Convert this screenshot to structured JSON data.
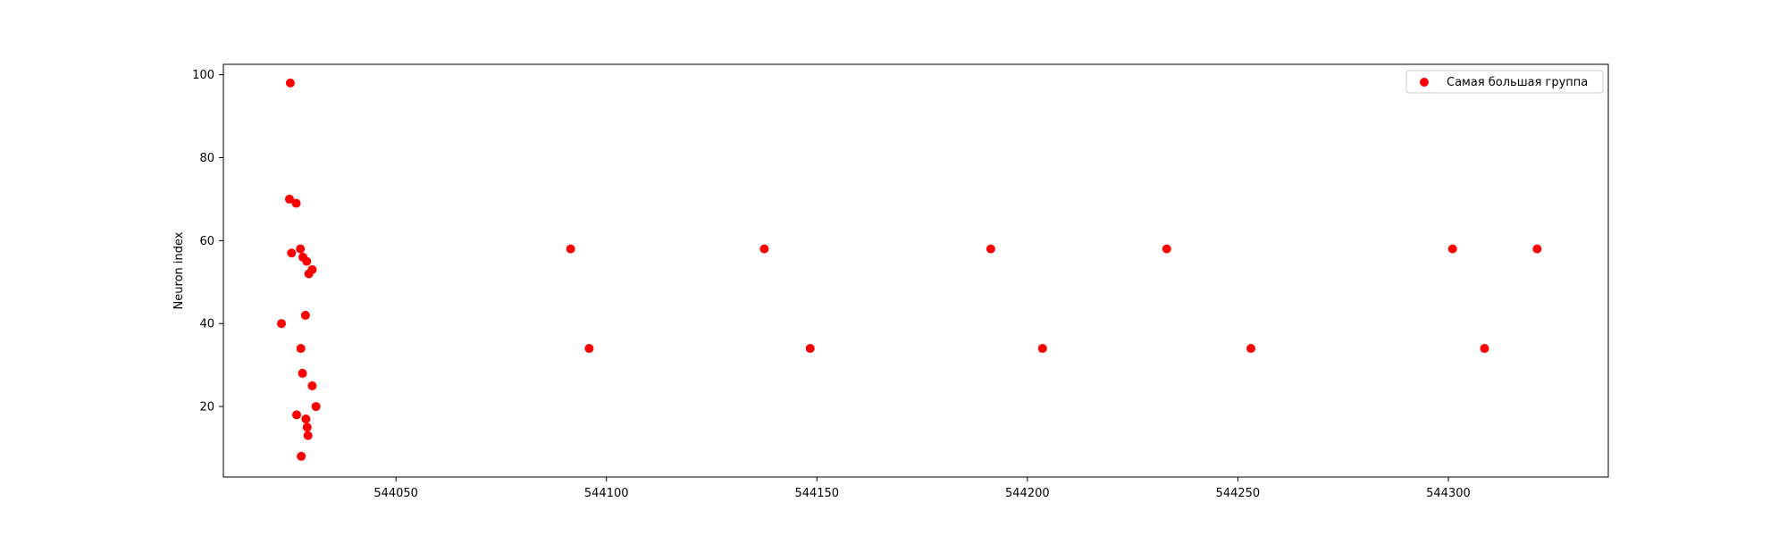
{
  "chart_data": {
    "type": "scatter",
    "title": "",
    "xlabel": "",
    "ylabel": "Neuron index",
    "xlim": [
      544009,
      544338
    ],
    "ylim": [
      3,
      102.5
    ],
    "xticks": [
      544050,
      544100,
      544150,
      544200,
      544250,
      544300
    ],
    "yticks": [
      20,
      40,
      60,
      80,
      100
    ],
    "grid": false,
    "legend_position": "top-right",
    "series": [
      {
        "name": "Самая большая группа",
        "color": "#ff0000",
        "marker": "circle",
        "points": [
          {
            "x": 544022.8,
            "y": 40
          },
          {
            "x": 544024.7,
            "y": 70
          },
          {
            "x": 544024.9,
            "y": 98
          },
          {
            "x": 544025.2,
            "y": 57
          },
          {
            "x": 544026.3,
            "y": 69
          },
          {
            "x": 544026.4,
            "y": 18
          },
          {
            "x": 544027.3,
            "y": 58
          },
          {
            "x": 544027.4,
            "y": 34
          },
          {
            "x": 544027.5,
            "y": 8
          },
          {
            "x": 544027.8,
            "y": 28
          },
          {
            "x": 544027.9,
            "y": 56
          },
          {
            "x": 544028.5,
            "y": 42
          },
          {
            "x": 544028.6,
            "y": 17
          },
          {
            "x": 544028.8,
            "y": 55
          },
          {
            "x": 544028.9,
            "y": 15
          },
          {
            "x": 544029.1,
            "y": 13
          },
          {
            "x": 544029.3,
            "y": 52
          },
          {
            "x": 544030.1,
            "y": 53
          },
          {
            "x": 544030.1,
            "y": 25
          },
          {
            "x": 544031.0,
            "y": 20
          },
          {
            "x": 544091.5,
            "y": 58
          },
          {
            "x": 544095.9,
            "y": 34
          },
          {
            "x": 544137.5,
            "y": 58
          },
          {
            "x": 544148.4,
            "y": 34
          },
          {
            "x": 544191.3,
            "y": 58
          },
          {
            "x": 544203.6,
            "y": 34
          },
          {
            "x": 544233.1,
            "y": 58
          },
          {
            "x": 544253.1,
            "y": 34
          },
          {
            "x": 544301.0,
            "y": 58
          },
          {
            "x": 544308.6,
            "y": 34
          },
          {
            "x": 544321.1,
            "y": 58
          }
        ]
      }
    ]
  }
}
